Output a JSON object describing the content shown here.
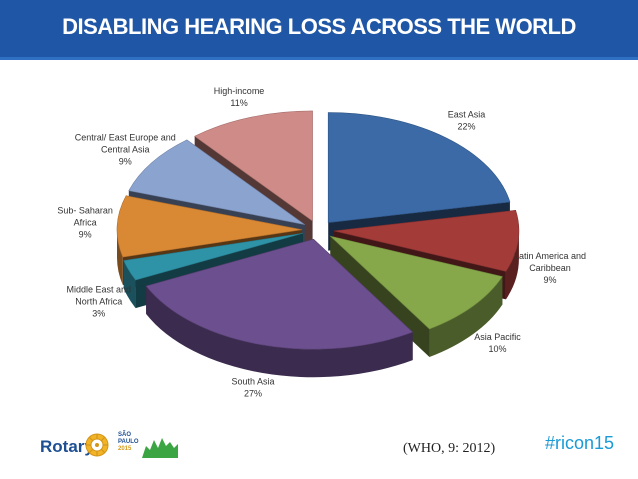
{
  "header": {
    "title": "DISABLING HEARING LOSS ACROSS THE WORLD"
  },
  "chart_data": {
    "type": "pie",
    "title": "",
    "series": [
      {
        "label": [
          "East Asia"
        ],
        "value": 22,
        "value_label": "22%",
        "color": "#3b6aa6"
      },
      {
        "label": [
          "Latin America and",
          "Caribbean"
        ],
        "value": 9,
        "value_label": "9%",
        "color": "#a33b39"
      },
      {
        "label": [
          "Asia Pacific"
        ],
        "value": 10,
        "value_label": "10%",
        "color": "#86a74a"
      },
      {
        "label": [
          "South Asia"
        ],
        "value": 27,
        "value_label": "27%",
        "color": "#6c4f8e"
      },
      {
        "label": [
          "Middle East and",
          "North Africa"
        ],
        "value": 3,
        "value_label": "3%",
        "color": "#2f93a8"
      },
      {
        "label": [
          "Sub- Saharan",
          "Africa"
        ],
        "value": 9,
        "value_label": "9%",
        "color": "#d98834"
      },
      {
        "label": [
          "Central/ East Europe and",
          "Central Asia"
        ],
        "value": 9,
        "value_label": "9%",
        "color": "#8ba3cf"
      },
      {
        "label": [
          "High-income"
        ],
        "value": 11,
        "value_label": "11%",
        "color": "#cf8b87"
      }
    ],
    "legend": "none",
    "style": "3d-exploded"
  },
  "footer": {
    "brand": "Rotary",
    "event_lines": [
      "SÃO",
      "PAULO",
      "2015"
    ],
    "citation": "(WHO, 9: 2012)",
    "hashtag": "#ricon15"
  }
}
